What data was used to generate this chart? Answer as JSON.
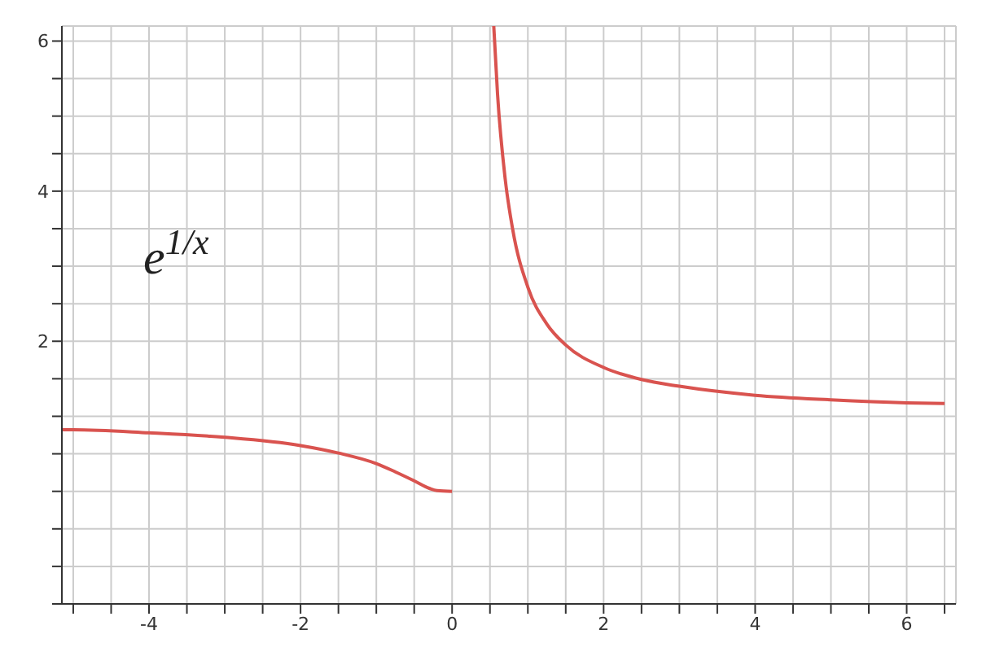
{
  "chart_data": {
    "type": "line",
    "annotations": [
      "e$^{1/x}$"
    ],
    "xlim": [
      -5.15,
      6.65
    ],
    "xticks": [
      {
        "value": -5,
        "label": null
      },
      {
        "value": -4.5,
        "label": null
      },
      -4,
      {
        "value": -3.5,
        "label": null
      },
      {
        "value": -3,
        "label": null
      },
      {
        "value": -2.5,
        "label": null
      },
      -2,
      {
        "value": -1.5,
        "label": null
      },
      {
        "value": -1,
        "label": null
      },
      {
        "value": -0.5,
        "label": null
      },
      0,
      {
        "value": 0.5,
        "label": null
      },
      {
        "value": 1,
        "label": null
      },
      {
        "value": 1.5,
        "label": null
      },
      2,
      {
        "value": 2.5,
        "label": null
      },
      {
        "value": 3,
        "label": null
      },
      {
        "value": 3.5,
        "label": null
      },
      4,
      {
        "value": 4.5,
        "label": null
      },
      {
        "value": 5,
        "label": null
      },
      {
        "value": 5.5,
        "label": null
      },
      6,
      {
        "value": 6.5,
        "label": null
      }
    ],
    "ylim": [
      -1.5,
      6.2
    ],
    "yticks": [
      {
        "value": -1.5,
        "label": null
      },
      {
        "value": -1,
        "label": null
      },
      {
        "value": -0.5,
        "label": null
      },
      {
        "value": 0,
        "label": null
      },
      {
        "value": 0.5,
        "label": null
      },
      {
        "value": 1,
        "label": null
      },
      {
        "value": 1.5,
        "label": null
      },
      2,
      {
        "value": 2.5,
        "label": null
      },
      {
        "value": 3,
        "label": null
      },
      {
        "value": 3.5,
        "label": null
      },
      4,
      {
        "value": 4.5,
        "label": null
      },
      {
        "value": 5,
        "label": null
      },
      {
        "value": 5.5,
        "label": null
      },
      6
    ],
    "grid": true,
    "marker": "none",
    "line_style": "solid",
    "series": [
      {
        "color": "#d9534f",
        "x": [
          -5.15,
          -5,
          -4,
          -3,
          -2,
          -1.5,
          -1,
          -0.75,
          -0.5,
          -0.3,
          -0.2,
          0
        ],
        "values": [
          0.82,
          0.82,
          0.78,
          0.72,
          0.61,
          0.51,
          0.37,
          0.26,
          0.14,
          0.04,
          0.01,
          0
        ]
      },
      {
        "color": "#d9534f",
        "x": [
          0.55,
          0.6,
          0.7,
          0.8,
          1,
          1.25,
          1.5,
          2,
          2.5,
          3,
          4,
          5,
          6,
          6.5
        ],
        "values": [
          6.2,
          5.29,
          4.17,
          3.49,
          2.72,
          2.23,
          1.95,
          1.65,
          1.49,
          1.4,
          1.28,
          1.22,
          1.18,
          1.17
        ]
      }
    ]
  }
}
